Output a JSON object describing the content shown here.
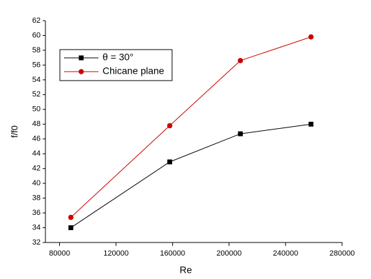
{
  "chart_data": {
    "type": "line",
    "x_label": "Re",
    "y_label": "f/f0",
    "x": [
      88000,
      158000,
      208000,
      258000
    ],
    "series": [
      {
        "name": "θ = 30°",
        "color": "#000000",
        "marker": "square",
        "values": [
          34.0,
          42.9,
          46.7,
          48.0
        ]
      },
      {
        "name": "Chicane plane",
        "color": "#cc0000",
        "marker": "circle",
        "values": [
          35.4,
          47.8,
          56.6,
          59.8
        ]
      }
    ],
    "xlim": [
      70000,
      280000
    ],
    "xticks": [
      80000,
      120000,
      160000,
      200000,
      240000,
      280000
    ],
    "ylim": [
      32,
      62
    ],
    "yticks": [
      32,
      34,
      36,
      38,
      40,
      42,
      44,
      46,
      48,
      50,
      52,
      54,
      56,
      58,
      60,
      62
    ],
    "legend": "top-left",
    "grid": false
  }
}
